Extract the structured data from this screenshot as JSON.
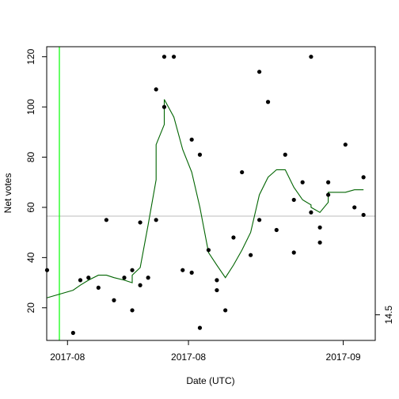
{
  "chart_data": {
    "type": "scatter",
    "title": "",
    "xlabel": "Date (UTC)",
    "ylabel": "Net votes",
    "x_tick_labels": [
      "2017-08",
      "2017-08",
      "2017-09"
    ],
    "x_tick_days": [
      1.13,
      7.82,
      16.38
    ],
    "xlim": [
      -0.02,
      18.15
    ],
    "ylim": [
      7,
      124
    ],
    "y_ticks": [
      20,
      40,
      60,
      80,
      100,
      120
    ],
    "right_axis": {
      "tick_label": "14.5",
      "value": 17.2
    },
    "grid": false,
    "points": [
      {
        "x": 0.0,
        "y": 35
      },
      {
        "x": 1.44,
        "y": 10
      },
      {
        "x": 1.84,
        "y": 31
      },
      {
        "x": 2.29,
        "y": 32
      },
      {
        "x": 2.84,
        "y": 28
      },
      {
        "x": 3.28,
        "y": 55
      },
      {
        "x": 3.7,
        "y": 23
      },
      {
        "x": 4.27,
        "y": 32
      },
      {
        "x": 4.71,
        "y": 35
      },
      {
        "x": 4.71,
        "y": 19
      },
      {
        "x": 5.15,
        "y": 29
      },
      {
        "x": 5.15,
        "y": 54
      },
      {
        "x": 5.59,
        "y": 32
      },
      {
        "x": 6.03,
        "y": 107
      },
      {
        "x": 6.03,
        "y": 55
      },
      {
        "x": 6.48,
        "y": 120
      },
      {
        "x": 6.48,
        "y": 100
      },
      {
        "x": 7.01,
        "y": 120
      },
      {
        "x": 7.5,
        "y": 35
      },
      {
        "x": 8.0,
        "y": 34
      },
      {
        "x": 8.0,
        "y": 87
      },
      {
        "x": 8.45,
        "y": 81
      },
      {
        "x": 8.45,
        "y": 12
      },
      {
        "x": 8.93,
        "y": 43
      },
      {
        "x": 9.39,
        "y": 31
      },
      {
        "x": 9.39,
        "y": 27
      },
      {
        "x": 9.86,
        "y": 19
      },
      {
        "x": 10.31,
        "y": 48
      },
      {
        "x": 10.78,
        "y": 74
      },
      {
        "x": 11.26,
        "y": 41
      },
      {
        "x": 11.74,
        "y": 114
      },
      {
        "x": 11.74,
        "y": 55
      },
      {
        "x": 12.22,
        "y": 102
      },
      {
        "x": 12.69,
        "y": 51
      },
      {
        "x": 13.17,
        "y": 81
      },
      {
        "x": 13.65,
        "y": 63
      },
      {
        "x": 13.65,
        "y": 42
      },
      {
        "x": 14.13,
        "y": 70
      },
      {
        "x": 14.6,
        "y": 58
      },
      {
        "x": 14.6,
        "y": 120
      },
      {
        "x": 15.09,
        "y": 52
      },
      {
        "x": 15.09,
        "y": 46
      },
      {
        "x": 15.55,
        "y": 70
      },
      {
        "x": 15.55,
        "y": 65
      },
      {
        "x": 16.5,
        "y": 85
      },
      {
        "x": 17.0,
        "y": 60
      },
      {
        "x": 17.5,
        "y": 72
      },
      {
        "x": 17.5,
        "y": 57
      }
    ],
    "trend": {
      "color": "#006400",
      "x": [
        0.0,
        1.44,
        1.84,
        2.29,
        2.84,
        3.28,
        3.7,
        4.27,
        4.71,
        4.71,
        5.15,
        5.59,
        6.03,
        6.03,
        6.48,
        6.48,
        7.01,
        7.5,
        8.0,
        8.45,
        8.93,
        9.39,
        9.86,
        10.31,
        10.78,
        11.26,
        11.74,
        12.22,
        12.69,
        13.17,
        13.65,
        14.13,
        14.6,
        14.6,
        15.09,
        15.55,
        15.55,
        16.5,
        17.0,
        17.5
      ],
      "y": [
        24,
        27,
        29,
        31,
        33,
        33,
        32,
        31,
        30,
        33,
        36,
        53,
        71,
        85,
        93,
        103,
        96,
        83,
        74,
        60,
        42,
        37,
        32,
        37,
        43,
        50,
        65,
        72,
        75,
        75,
        68,
        63,
        61,
        60,
        58,
        62,
        66,
        66,
        67,
        67
      ]
    },
    "hline": {
      "y": 56.5,
      "color": "#bebebe"
    },
    "vline": {
      "x": -0.02,
      "color": "#00ff00"
    },
    "point_color": "#000000"
  }
}
